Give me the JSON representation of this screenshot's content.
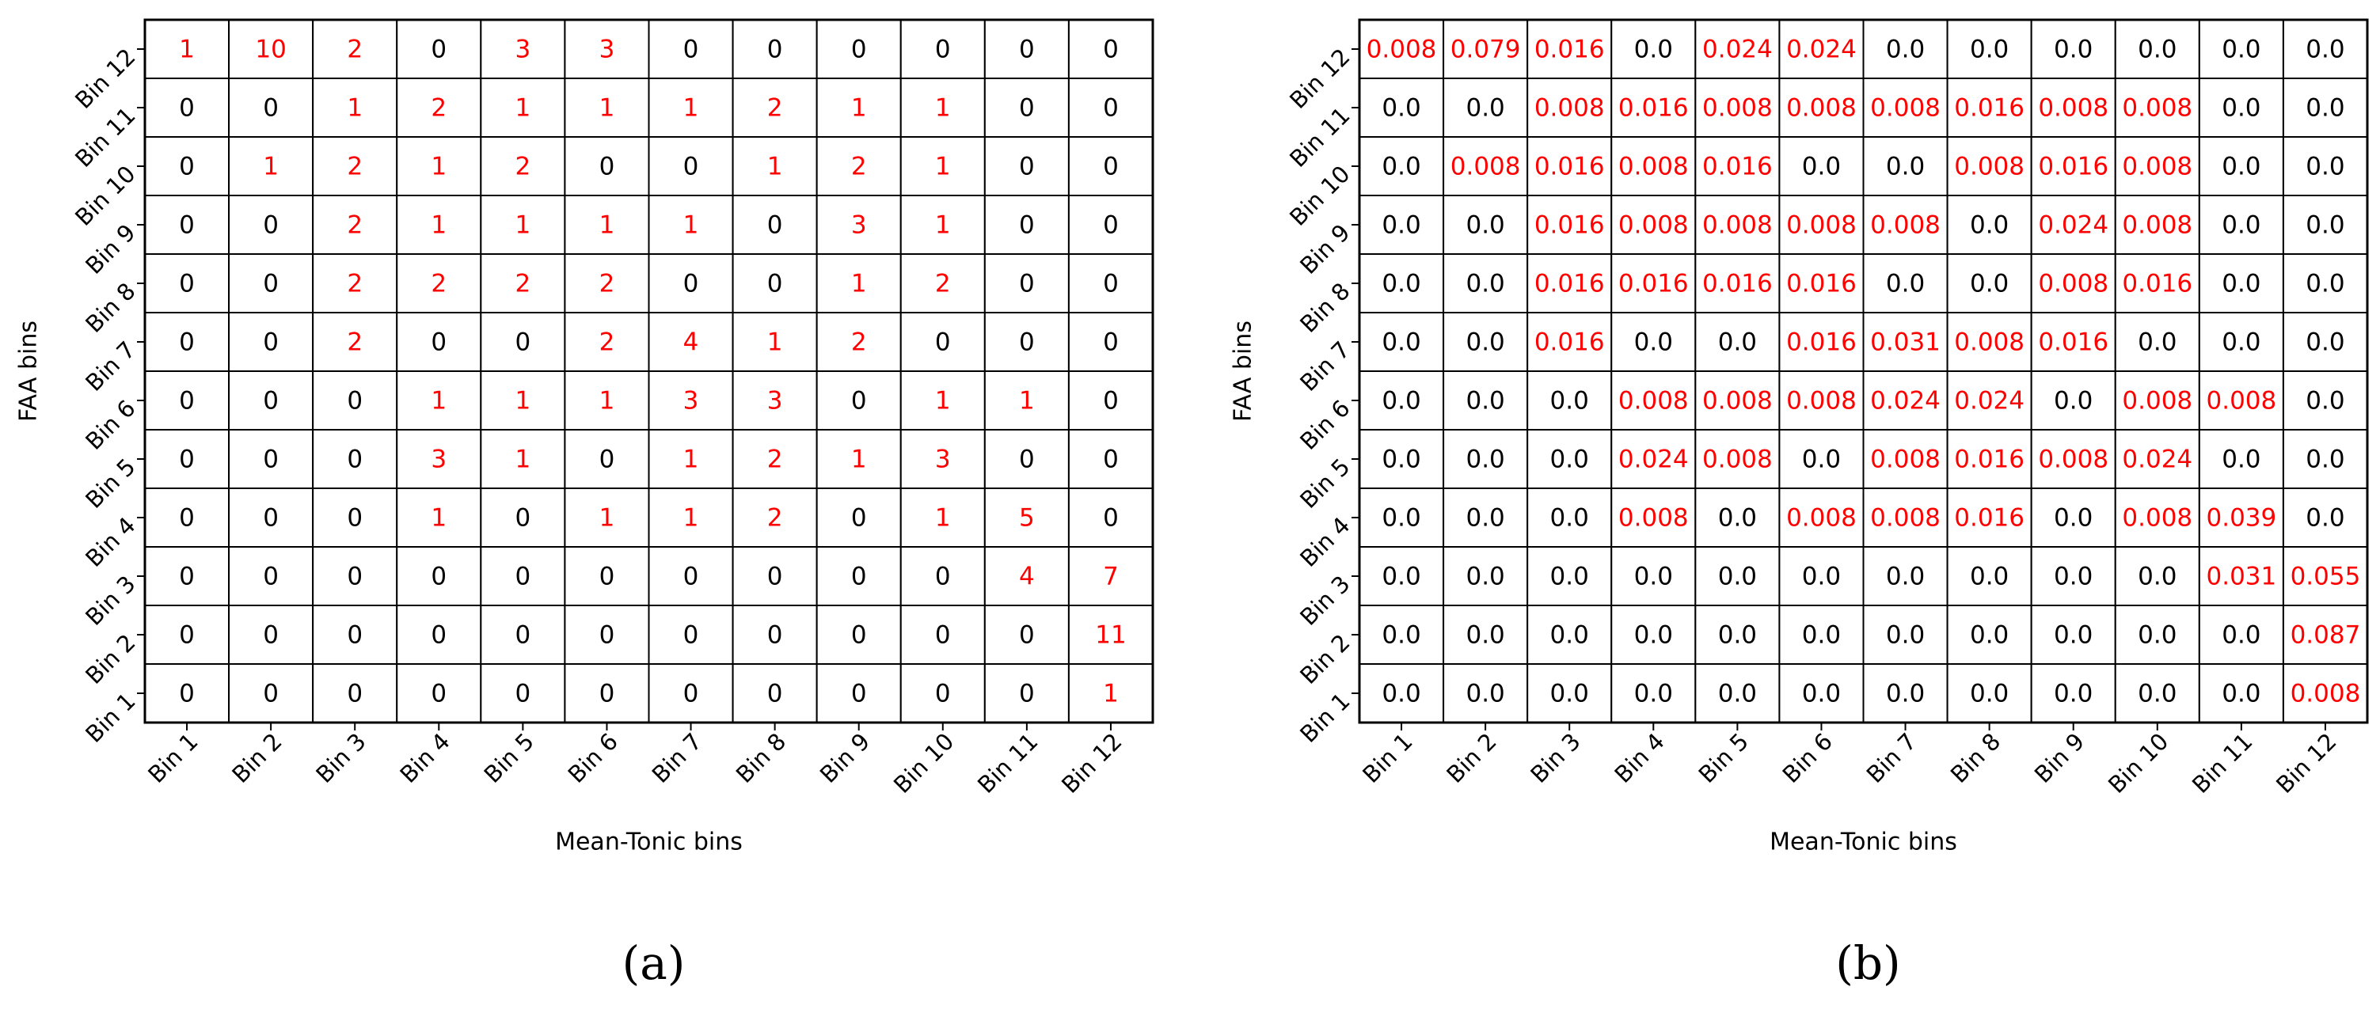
{
  "chart_data": [
    {
      "type": "table-heatmap",
      "caption": "(a)",
      "xlabel": "Mean-Tonic bins",
      "ylabel": "FAA bins",
      "x_categories": [
        "Bin 1",
        "Bin 2",
        "Bin 3",
        "Bin 4",
        "Bin 5",
        "Bin 6",
        "Bin 7",
        "Bin 8",
        "Bin 9",
        "Bin 10",
        "Bin 11",
        "Bin 12"
      ],
      "y_categories": [
        "Bin 12",
        "Bin 11",
        "Bin 10",
        "Bin 9",
        "Bin 8",
        "Bin 7",
        "Bin 6",
        "Bin 5",
        "Bin 4",
        "Bin 3",
        "Bin 2",
        "Bin 1"
      ],
      "zero_color": "#000000",
      "nonzero_color": "#ff0000",
      "values": [
        [
          1,
          10,
          2,
          0,
          3,
          3,
          0,
          0,
          0,
          0,
          0,
          0
        ],
        [
          0,
          0,
          1,
          2,
          1,
          1,
          1,
          2,
          1,
          1,
          0,
          0
        ],
        [
          0,
          1,
          2,
          1,
          2,
          0,
          0,
          1,
          2,
          1,
          0,
          0
        ],
        [
          0,
          0,
          2,
          1,
          1,
          1,
          1,
          0,
          3,
          1,
          0,
          0
        ],
        [
          0,
          0,
          2,
          2,
          2,
          2,
          0,
          0,
          1,
          2,
          0,
          0
        ],
        [
          0,
          0,
          2,
          0,
          0,
          2,
          4,
          1,
          2,
          0,
          0,
          0
        ],
        [
          0,
          0,
          0,
          1,
          1,
          1,
          3,
          3,
          0,
          1,
          1,
          0
        ],
        [
          0,
          0,
          0,
          3,
          1,
          0,
          1,
          2,
          1,
          3,
          0,
          0
        ],
        [
          0,
          0,
          0,
          1,
          0,
          1,
          1,
          2,
          0,
          1,
          5,
          0
        ],
        [
          0,
          0,
          0,
          0,
          0,
          0,
          0,
          0,
          0,
          0,
          4,
          7
        ],
        [
          0,
          0,
          0,
          0,
          0,
          0,
          0,
          0,
          0,
          0,
          0,
          11
        ],
        [
          0,
          0,
          0,
          0,
          0,
          0,
          0,
          0,
          0,
          0,
          0,
          1
        ]
      ]
    },
    {
      "type": "table-heatmap",
      "caption": "(b)",
      "xlabel": "Mean-Tonic bins",
      "ylabel": "FAA bins",
      "x_categories": [
        "Bin 1",
        "Bin 2",
        "Bin 3",
        "Bin 4",
        "Bin 5",
        "Bin 6",
        "Bin 7",
        "Bin 8",
        "Bin 9",
        "Bin 10",
        "Bin 11",
        "Bin 12"
      ],
      "y_categories": [
        "Bin 12",
        "Bin 11",
        "Bin 10",
        "Bin 9",
        "Bin 8",
        "Bin 7",
        "Bin 6",
        "Bin 5",
        "Bin 4",
        "Bin 3",
        "Bin 2",
        "Bin 1"
      ],
      "zero_color": "#000000",
      "nonzero_color": "#ff0000",
      "values": [
        [
          0.008,
          0.079,
          0.016,
          0,
          0.024,
          0.024,
          0,
          0,
          0,
          0,
          0,
          0
        ],
        [
          0,
          0,
          0.008,
          0.016,
          0.008,
          0.008,
          0.008,
          0.016,
          0.008,
          0.008,
          0,
          0
        ],
        [
          0,
          0.008,
          0.016,
          0.008,
          0.016,
          0,
          0,
          0.008,
          0.016,
          0.008,
          0,
          0
        ],
        [
          0,
          0,
          0.016,
          0.008,
          0.008,
          0.008,
          0.008,
          0,
          0.024,
          0.008,
          0,
          0
        ],
        [
          0,
          0,
          0.016,
          0.016,
          0.016,
          0.016,
          0,
          0,
          0.008,
          0.016,
          0,
          0
        ],
        [
          0,
          0,
          0.016,
          0,
          0,
          0.016,
          0.031,
          0.008,
          0.016,
          0,
          0,
          0
        ],
        [
          0,
          0,
          0,
          0.008,
          0.008,
          0.008,
          0.024,
          0.024,
          0,
          0.008,
          0.008,
          0
        ],
        [
          0,
          0,
          0,
          0.024,
          0.008,
          0,
          0.008,
          0.016,
          0.008,
          0.024,
          0,
          0
        ],
        [
          0,
          0,
          0,
          0.008,
          0,
          0.008,
          0.008,
          0.016,
          0,
          0.008,
          0.039,
          0
        ],
        [
          0,
          0,
          0,
          0,
          0,
          0,
          0,
          0,
          0,
          0,
          0.031,
          0.055
        ],
        [
          0,
          0,
          0,
          0,
          0,
          0,
          0,
          0,
          0,
          0,
          0,
          0.087
        ],
        [
          0,
          0,
          0,
          0,
          0,
          0,
          0,
          0,
          0,
          0,
          0,
          0.008
        ]
      ],
      "value_labels": [
        [
          "0.008",
          "0.079",
          "0.016",
          "0.0",
          "0.024",
          "0.024",
          "0.0",
          "0.0",
          "0.0",
          "0.0",
          "0.0",
          "0.0"
        ],
        [
          "0.0",
          "0.0",
          "0.008",
          "0.016",
          "0.008",
          "0.008",
          "0.008",
          "0.016",
          "0.008",
          "0.008",
          "0.0",
          "0.0"
        ],
        [
          "0.0",
          "0.008",
          "0.016",
          "0.008",
          "0.016",
          "0.0",
          "0.0",
          "0.008",
          "0.016",
          "0.008",
          "0.0",
          "0.0"
        ],
        [
          "0.0",
          "0.0",
          "0.016",
          "0.008",
          "0.008",
          "0.008",
          "0.008",
          "0.0",
          "0.024",
          "0.008",
          "0.0",
          "0.0"
        ],
        [
          "0.0",
          "0.0",
          "0.016",
          "0.016",
          "0.016",
          "0.016",
          "0.0",
          "0.0",
          "0.008",
          "0.016",
          "0.0",
          "0.0"
        ],
        [
          "0.0",
          "0.0",
          "0.016",
          "0.0",
          "0.0",
          "0.016",
          "0.031",
          "0.008",
          "0.016",
          "0.0",
          "0.0",
          "0.0"
        ],
        [
          "0.0",
          "0.0",
          "0.0",
          "0.008",
          "0.008",
          "0.008",
          "0.024",
          "0.024",
          "0.0",
          "0.008",
          "0.008",
          "0.0"
        ],
        [
          "0.0",
          "0.0",
          "0.0",
          "0.024",
          "0.008",
          "0.0",
          "0.008",
          "0.016",
          "0.008",
          "0.024",
          "0.0",
          "0.0"
        ],
        [
          "0.0",
          "0.0",
          "0.0",
          "0.008",
          "0.0",
          "0.008",
          "0.008",
          "0.016",
          "0.0",
          "0.008",
          "0.039",
          "0.0"
        ],
        [
          "0.0",
          "0.0",
          "0.0",
          "0.0",
          "0.0",
          "0.0",
          "0.0",
          "0.0",
          "0.0",
          "0.0",
          "0.031",
          "0.055"
        ],
        [
          "0.0",
          "0.0",
          "0.0",
          "0.0",
          "0.0",
          "0.0",
          "0.0",
          "0.0",
          "0.0",
          "0.0",
          "0.0",
          "0.087"
        ],
        [
          "0.0",
          "0.0",
          "0.0",
          "0.0",
          "0.0",
          "0.0",
          "0.0",
          "0.0",
          "0.0",
          "0.0",
          "0.0",
          "0.008"
        ]
      ]
    }
  ]
}
